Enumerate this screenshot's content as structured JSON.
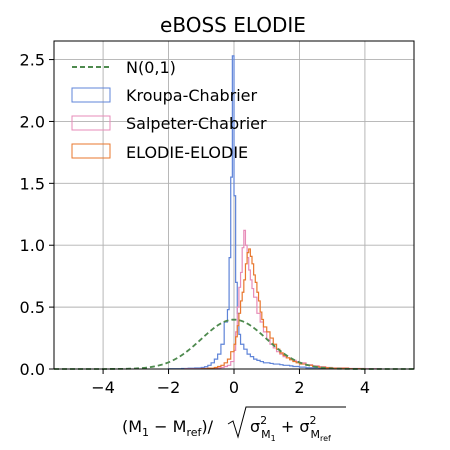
{
  "chart_data": {
    "type": "step",
    "title": "eBOSS ELODIE",
    "xlim": [
      -5.5,
      5.5
    ],
    "ylim": [
      0.0,
      2.65
    ],
    "grid": true,
    "legend_position": "top-left",
    "x_ticks": [
      -4,
      -2,
      0,
      2,
      4
    ],
    "x_tick_labels": [
      "−4",
      "−2",
      "0",
      "2",
      "4"
    ],
    "y_ticks": [
      0.0,
      0.5,
      1.0,
      1.5,
      2.0,
      2.5
    ],
    "y_tick_labels": [
      "0.0",
      "0.5",
      "1.0",
      "1.5",
      "2.0",
      "2.5"
    ],
    "xlabel": {
      "prefix": "(M",
      "sub1": "1",
      "mid": " − M",
      "sub_ref": "ref",
      "close": ")/",
      "sigma": "σ",
      "sq": "2",
      "sub_m": "M",
      "sub_m1": "1",
      "plus": " + ",
      "sub_mref": "ref"
    },
    "series": [
      {
        "name": "N(0,1)",
        "kind": "curve",
        "color": "#4e8a4e",
        "dashed": true,
        "mean": 0,
        "sd": 1
      },
      {
        "name": "Kroupa-Chabrier",
        "kind": "step",
        "color": "#5f84d8",
        "bins": [
          [
            -2.0,
            0.002
          ],
          [
            -1.6,
            0.004
          ],
          [
            -1.4,
            0.006
          ],
          [
            -1.2,
            0.008
          ],
          [
            -1.0,
            0.012
          ],
          [
            -0.9,
            0.018
          ],
          [
            -0.8,
            0.03
          ],
          [
            -0.7,
            0.05
          ],
          [
            -0.6,
            0.08
          ],
          [
            -0.5,
            0.12
          ],
          [
            -0.4,
            0.2
          ],
          [
            -0.3,
            0.38
          ],
          [
            -0.2,
            0.48
          ],
          [
            -0.15,
            0.9
          ],
          [
            -0.1,
            1.55
          ],
          [
            -0.05,
            2.53
          ],
          [
            0.0,
            1.4
          ],
          [
            0.05,
            0.7
          ],
          [
            0.1,
            0.45
          ],
          [
            0.15,
            0.28
          ],
          [
            0.2,
            0.2
          ],
          [
            0.3,
            0.16
          ],
          [
            0.4,
            0.12
          ],
          [
            0.5,
            0.1
          ],
          [
            0.6,
            0.08
          ],
          [
            0.7,
            0.07
          ],
          [
            0.8,
            0.06
          ],
          [
            0.9,
            0.05
          ],
          [
            1.0,
            0.05
          ],
          [
            1.1,
            0.045
          ],
          [
            1.2,
            0.04
          ],
          [
            1.3,
            0.04
          ],
          [
            1.4,
            0.035
          ],
          [
            1.5,
            0.03
          ],
          [
            1.6,
            0.03
          ],
          [
            1.7,
            0.025
          ],
          [
            1.8,
            0.02
          ],
          [
            2.0,
            0.015
          ],
          [
            2.2,
            0.01
          ],
          [
            2.6,
            0.006
          ],
          [
            3.0,
            0.003
          ],
          [
            3.5,
            0.001
          ]
        ],
        "bin_end": 4.0
      },
      {
        "name": "Salpeter-Chabrier",
        "kind": "step",
        "color": "#e78bb8",
        "bins": [
          [
            -1.5,
            0.002
          ],
          [
            -1.0,
            0.004
          ],
          [
            -0.6,
            0.008
          ],
          [
            -0.4,
            0.012
          ],
          [
            -0.3,
            0.02
          ],
          [
            -0.2,
            0.03
          ],
          [
            -0.1,
            0.06
          ],
          [
            0.0,
            0.15
          ],
          [
            0.05,
            0.3
          ],
          [
            0.1,
            0.5
          ],
          [
            0.15,
            0.66
          ],
          [
            0.2,
            0.78
          ],
          [
            0.25,
            0.98
          ],
          [
            0.3,
            1.12
          ],
          [
            0.35,
            1.0
          ],
          [
            0.4,
            0.9
          ],
          [
            0.45,
            0.8
          ],
          [
            0.5,
            0.72
          ],
          [
            0.55,
            0.65
          ],
          [
            0.6,
            0.58
          ],
          [
            0.7,
            0.45
          ],
          [
            0.8,
            0.38
          ],
          [
            0.9,
            0.3
          ],
          [
            1.0,
            0.24
          ],
          [
            1.1,
            0.2
          ],
          [
            1.2,
            0.17
          ],
          [
            1.3,
            0.14
          ],
          [
            1.4,
            0.12
          ],
          [
            1.5,
            0.1
          ],
          [
            1.6,
            0.09
          ],
          [
            1.7,
            0.08
          ],
          [
            1.8,
            0.07
          ],
          [
            1.9,
            0.06
          ],
          [
            2.0,
            0.05
          ],
          [
            2.2,
            0.035
          ],
          [
            2.4,
            0.025
          ],
          [
            2.6,
            0.018
          ],
          [
            2.8,
            0.012
          ],
          [
            3.0,
            0.008
          ],
          [
            3.5,
            0.004
          ],
          [
            4.0,
            0.002
          ]
        ],
        "bin_end": 4.5
      },
      {
        "name": "ELODIE-ELODIE",
        "kind": "step",
        "color": "#e8772e",
        "bins": [
          [
            -1.0,
            0.002
          ],
          [
            -0.8,
            0.006
          ],
          [
            -0.6,
            0.012
          ],
          [
            -0.5,
            0.02
          ],
          [
            -0.4,
            0.03
          ],
          [
            -0.3,
            0.05
          ],
          [
            -0.2,
            0.08
          ],
          [
            -0.1,
            0.14
          ],
          [
            0.0,
            0.2
          ],
          [
            0.05,
            0.26
          ],
          [
            0.1,
            0.35
          ],
          [
            0.15,
            0.45
          ],
          [
            0.2,
            0.55
          ],
          [
            0.25,
            0.62
          ],
          [
            0.3,
            0.72
          ],
          [
            0.35,
            0.85
          ],
          [
            0.4,
            0.94
          ],
          [
            0.45,
            0.97
          ],
          [
            0.5,
            0.91
          ],
          [
            0.55,
            0.85
          ],
          [
            0.6,
            0.76
          ],
          [
            0.65,
            0.7
          ],
          [
            0.7,
            0.62
          ],
          [
            0.75,
            0.55
          ],
          [
            0.8,
            0.46
          ],
          [
            0.85,
            0.4
          ],
          [
            0.9,
            0.34
          ],
          [
            1.0,
            0.3
          ],
          [
            1.1,
            0.25
          ],
          [
            1.2,
            0.2
          ],
          [
            1.3,
            0.16
          ],
          [
            1.4,
            0.13
          ],
          [
            1.5,
            0.11
          ],
          [
            1.6,
            0.09
          ],
          [
            1.7,
            0.075
          ],
          [
            1.8,
            0.06
          ],
          [
            1.9,
            0.05
          ],
          [
            2.0,
            0.04
          ],
          [
            2.2,
            0.03
          ],
          [
            2.4,
            0.02
          ],
          [
            2.6,
            0.014
          ],
          [
            2.8,
            0.01
          ],
          [
            3.0,
            0.006
          ],
          [
            3.5,
            0.002
          ]
        ],
        "bin_end": 4.0
      }
    ]
  }
}
